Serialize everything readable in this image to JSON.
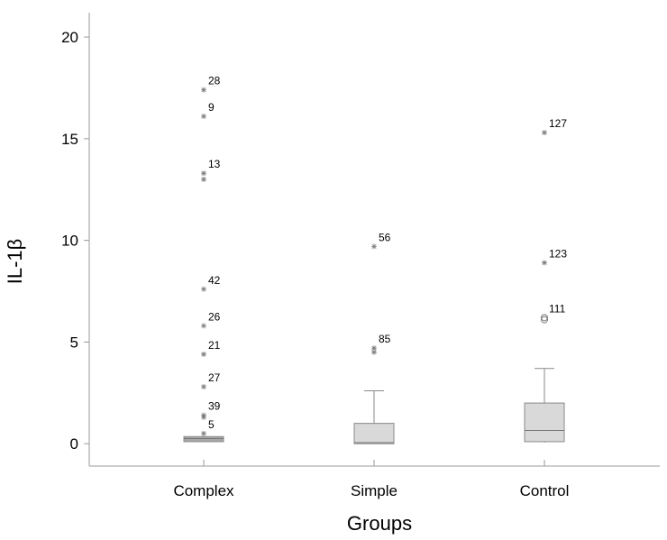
{
  "chart_data": {
    "type": "box",
    "title": "",
    "xlabel": "Groups",
    "ylabel": "IL-1β",
    "ylim": [
      -1.1,
      21.2
    ],
    "yticks": [
      0,
      5,
      10,
      15,
      20
    ],
    "categories": [
      "Complex",
      "Simple",
      "Control"
    ],
    "boxes": [
      {
        "category": "Complex",
        "min": 0.05,
        "q1": 0.1,
        "median": 0.25,
        "q3": 0.35,
        "max": 0.4,
        "outliers": [
          {
            "value": 17.4,
            "label": "28",
            "marker": "star"
          },
          {
            "value": 16.1,
            "label": "9",
            "marker": "star"
          },
          {
            "value": 13.3,
            "label": "13",
            "marker": "star"
          },
          {
            "value": 13.0,
            "label": "",
            "marker": "star"
          },
          {
            "value": 7.6,
            "label": "42",
            "marker": "star"
          },
          {
            "value": 5.8,
            "label": "26",
            "marker": "star"
          },
          {
            "value": 4.4,
            "label": "21",
            "marker": "star"
          },
          {
            "value": 2.8,
            "label": "27",
            "marker": "star"
          },
          {
            "value": 1.4,
            "label": "39",
            "marker": "star"
          },
          {
            "value": 1.3,
            "label": "",
            "marker": "star"
          },
          {
            "value": 0.5,
            "label": "5",
            "marker": "star"
          }
        ]
      },
      {
        "category": "Simple",
        "min": 0.0,
        "q1": 0.0,
        "median": 0.05,
        "q3": 1.0,
        "max": 2.6,
        "outliers": [
          {
            "value": 9.7,
            "label": "56",
            "marker": "star"
          },
          {
            "value": 4.7,
            "label": "85",
            "marker": "star"
          },
          {
            "value": 4.5,
            "label": "",
            "marker": "star"
          }
        ]
      },
      {
        "category": "Control",
        "min": 0.05,
        "q1": 0.1,
        "median": 0.65,
        "q3": 2.0,
        "max": 3.7,
        "outliers": [
          {
            "value": 15.3,
            "label": "127",
            "marker": "star"
          },
          {
            "value": 8.9,
            "label": "123",
            "marker": "star"
          },
          {
            "value": 6.2,
            "label": "111",
            "marker": "circle"
          },
          {
            "value": 6.1,
            "label": "",
            "marker": "circle"
          }
        ]
      }
    ],
    "colors": {
      "box_fill": "#d9d9d9",
      "box_fill_dark": "#a8a8a8",
      "box_stroke": "#8a8a8a",
      "marker": "#7a7a7a",
      "axis": "#9a9a9a"
    }
  }
}
